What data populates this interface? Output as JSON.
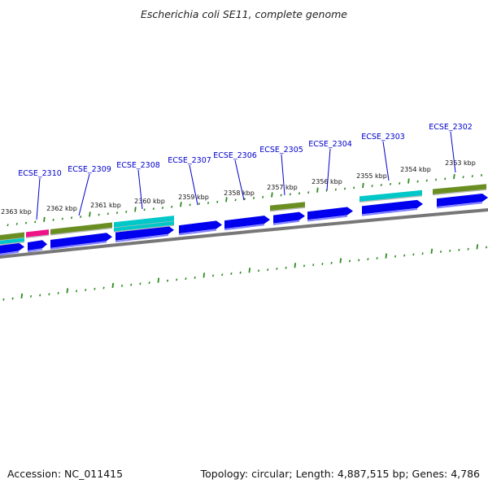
{
  "header": {
    "title": "Escherichia coli SE11, complete genome"
  },
  "footer": {
    "accession": "Accession: NC_011415",
    "summary": "Topology: circular; Length: 4,887,515 bp; Genes: 4,786"
  },
  "colors": {
    "cds": "#0000ee",
    "cds_shade": "#8080ff",
    "feature_olive": "#6b8e23",
    "feature_cyan": "#00c8c8",
    "feature_pink": "#ee1188",
    "tick": "#2e8b22",
    "backbone": "#777777",
    "label": "#0000cc"
  },
  "scale_labels": [
    "2353 kbp",
    "2354 kbp",
    "2355 kbp",
    "2356 kbp",
    "2357 kbp",
    "2358 kbp",
    "2359 kbp",
    "2360 kbp",
    "2361 kbp",
    "2362 kbp",
    "2363 kbp"
  ],
  "gene_labels": [
    "ECSE_2302",
    "ECSE_2303",
    "ECSE_2304",
    "ECSE_2305",
    "ECSE_2306",
    "ECSE_2307",
    "ECSE_2308",
    "ECSE_2309",
    "ECSE_2310"
  ]
}
